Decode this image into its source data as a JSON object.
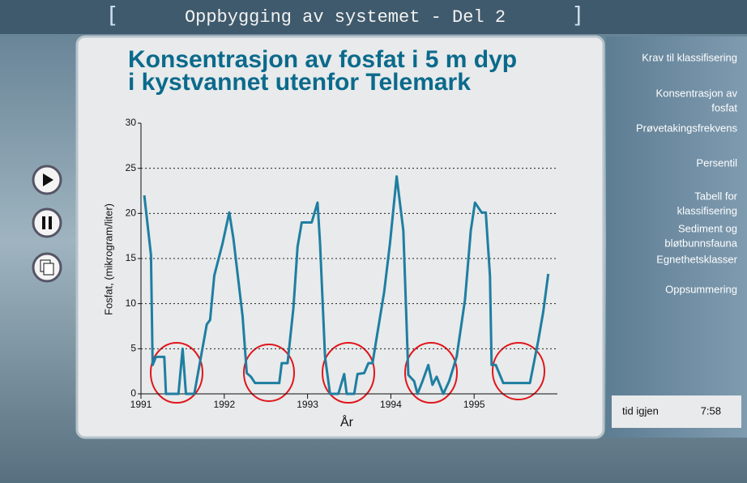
{
  "header": {
    "title": "Oppbygging av systemet - Del 2"
  },
  "menu": [
    [
      "Krav til klassifisering"
    ],
    [
      "Konsentrasjon av",
      "fosfat"
    ],
    [
      "Prøvetakingsfrekvens"
    ],
    [
      "Persentil"
    ],
    [
      "Tabell for",
      "klassifisering"
    ],
    [
      "Sediment og",
      "bløtbunnsfauna"
    ],
    [
      "Egnethetsklasser"
    ],
    [
      "Oppsummering"
    ]
  ],
  "timer": {
    "label": "tid igjen",
    "time": "7:58"
  },
  "chart_data": {
    "type": "line",
    "title_lines": [
      "Konsentrasjon av fosfat i 5 m dyp",
      "i kystvannet utenfor Telemark"
    ],
    "x_label": "År",
    "y_label": "Fosfat, (mikrogram/liter)",
    "x": [
      1991.04,
      1991.12,
      1991.14,
      1991.18,
      1991.28,
      1991.3,
      1991.45,
      1991.5,
      1991.54,
      1991.64,
      1991.72,
      1991.79,
      1991.83,
      1991.88,
      1991.98,
      1992.06,
      1992.11,
      1992.22,
      1992.27,
      1992.32,
      1992.37,
      1992.66,
      1992.69,
      1992.76,
      1992.83,
      1992.88,
      1992.93,
      1993.05,
      1993.12,
      1993.15,
      1993.21,
      1993.27,
      1993.37,
      1993.44,
      1993.47,
      1993.56,
      1993.6,
      1993.68,
      1993.73,
      1993.78,
      1993.84,
      1993.92,
      1993.99,
      1994.07,
      1994.15,
      1994.21,
      1994.28,
      1994.32,
      1994.38,
      1994.45,
      1994.5,
      1994.55,
      1994.63,
      1994.7,
      1994.79,
      1994.89,
      1994.96,
      1995.01,
      1995.09,
      1995.14,
      1995.19,
      1995.21,
      1995.26,
      1995.35,
      1995.67,
      1995.77,
      1995.83,
      1995.89
    ],
    "values": [
      22,
      15.4,
      3.2,
      4.1,
      4.1,
      0,
      0,
      5,
      0,
      0,
      4.1,
      7.7,
      8.2,
      13.1,
      16.7,
      20.1,
      17.2,
      8.6,
      2.3,
      1.9,
      1.2,
      1.2,
      3.4,
      3.4,
      9.5,
      16.3,
      19,
      19,
      21.2,
      16.7,
      4.1,
      0,
      0,
      2.2,
      0,
      0,
      2.2,
      2.3,
      3.4,
      3.4,
      6.8,
      11.3,
      16.7,
      24.1,
      18.1,
      2.1,
      1.4,
      0,
      1.4,
      3.2,
      1,
      1.9,
      0,
      1.4,
      4.1,
      10.4,
      18.1,
      21.2,
      20.1,
      20.1,
      13.1,
      3.2,
      3.2,
      1.2,
      1.2,
      5.9,
      9.1,
      13.3
    ],
    "color": "#1f7ea1",
    "xlim": [
      1991,
      1996
    ],
    "xticks": [
      1991,
      1992,
      1993,
      1994,
      1995
    ],
    "ylim": [
      0,
      30
    ],
    "yticks": [
      0,
      5,
      10,
      15,
      20,
      25,
      30
    ],
    "grid": true
  }
}
